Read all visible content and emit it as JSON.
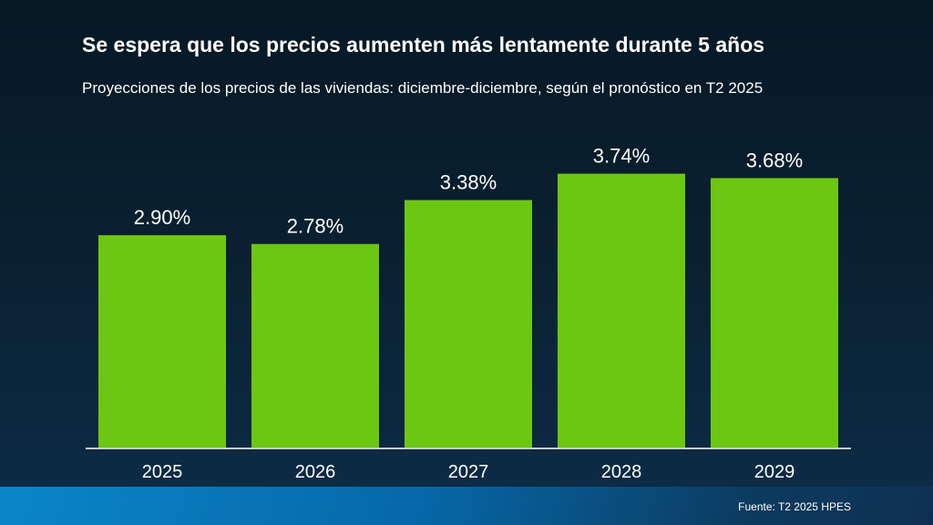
{
  "chart_data": {
    "type": "bar",
    "title": "Se espera que los precios aumenten más lentamente durante 5 años",
    "subtitle": "Proyecciones de los precios de las viviendas: diciembre-diciembre, según el pronóstico en T2 2025",
    "categories": [
      "2025",
      "2026",
      "2027",
      "2028",
      "2029"
    ],
    "values": [
      2.9,
      2.78,
      3.38,
      3.74,
      3.68
    ],
    "data_labels": [
      "2.90%",
      "2.78%",
      "3.38%",
      "3.74%",
      "3.68%"
    ],
    "xlabel": "",
    "ylabel": "",
    "ylim": [
      0,
      4.37
    ],
    "grid": false,
    "legend": "none",
    "colors": {
      "bar": "#6cc712",
      "axis": "#c8ccd0",
      "text": "#ffffff"
    }
  },
  "footer": {
    "source": "Fuente: T2 2025 HPES"
  }
}
